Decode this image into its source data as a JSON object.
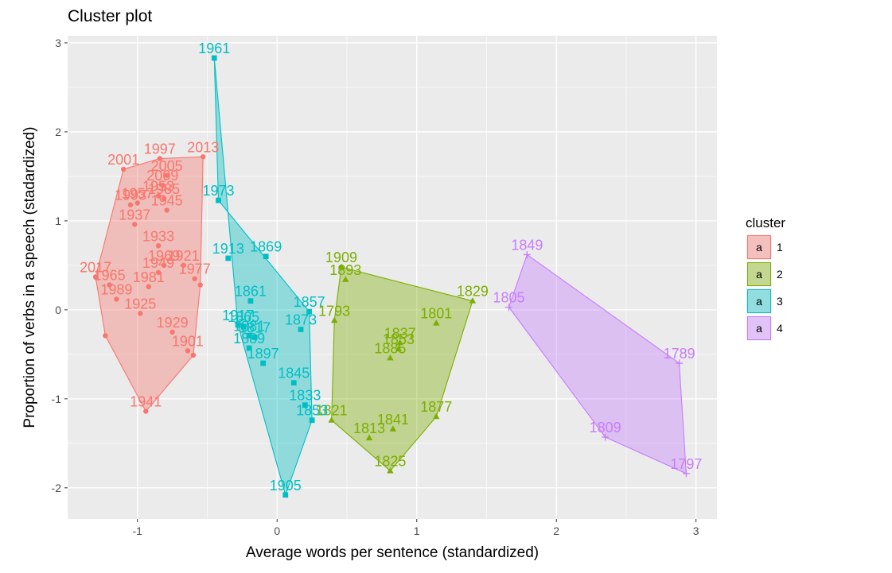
{
  "chart_data": {
    "type": "scatter",
    "title": "Cluster plot",
    "xlabel": "Average words per sentence (standardized)",
    "ylabel": "Proportion of verbs in a speech (stadardized)",
    "xlim": [
      -1.5,
      3.15
    ],
    "ylim": [
      -2.35,
      3.08
    ],
    "x_ticks": [
      -1,
      0,
      1,
      2,
      3
    ],
    "x_tick_labels": [
      "-1",
      "0",
      "1",
      "2",
      "3"
    ],
    "y_ticks": [
      -2,
      -1,
      0,
      1,
      2,
      3
    ],
    "y_tick_labels": [
      "-2",
      "-1",
      "0",
      "1",
      "2",
      "3"
    ],
    "grid": true,
    "legend": {
      "title": "cluster",
      "position": "right",
      "key_glyph": "a"
    },
    "series": [
      {
        "name": "1",
        "color": "#f8766d",
        "shape": "circle",
        "points": [
          {
            "label": "2001",
            "x": -1.1,
            "y": 1.58
          },
          {
            "label": "1997",
            "x": -0.84,
            "y": 1.7
          },
          {
            "label": "2013",
            "x": -0.53,
            "y": 1.72
          },
          {
            "label": "2005",
            "x": -0.79,
            "y": 1.51
          },
          {
            "label": "2009",
            "x": -0.82,
            "y": 1.4
          },
          {
            "label": "1957",
            "x": -1.0,
            "y": 1.2
          },
          {
            "label": "1953",
            "x": -0.85,
            "y": 1.28
          },
          {
            "label": "1985",
            "x": -0.81,
            "y": 1.25
          },
          {
            "label": "1993",
            "x": -1.05,
            "y": 1.18
          },
          {
            "label": "1945",
            "x": -0.79,
            "y": 1.12
          },
          {
            "label": "1937",
            "x": -1.02,
            "y": 0.96
          },
          {
            "label": "1933",
            "x": -0.85,
            "y": 0.72
          },
          {
            "label": "1969",
            "x": -0.81,
            "y": 0.5
          },
          {
            "label": "1921",
            "x": -0.67,
            "y": 0.5
          },
          {
            "label": "1949",
            "x": -0.85,
            "y": 0.42
          },
          {
            "label": "1977",
            "x": -0.59,
            "y": 0.35
          },
          {
            "label": "2017",
            "x": -1.3,
            "y": 0.37
          },
          {
            "label": "1965",
            "x": -1.2,
            "y": 0.28
          },
          {
            "label": "1981",
            "x": -0.92,
            "y": 0.26
          },
          {
            "label": "1989",
            "x": -1.15,
            "y": 0.12
          },
          {
            "label": "1925",
            "x": -0.98,
            "y": -0.04
          },
          {
            "label": "1929",
            "x": -0.75,
            "y": -0.25
          },
          {
            "label": "1901",
            "x": -0.64,
            "y": -0.46
          },
          {
            "label": "1941",
            "x": -0.94,
            "y": -1.14
          },
          {
            "label": "",
            "x": -1.23,
            "y": -0.29
          },
          {
            "label": "",
            "x": -0.6,
            "y": -0.51
          },
          {
            "label": "",
            "x": -0.55,
            "y": 0.28
          }
        ]
      },
      {
        "name": "2",
        "color": "#7cae00",
        "shape": "triangle",
        "points": [
          {
            "label": "1909",
            "x": 0.46,
            "y": 0.48
          },
          {
            "label": "1893",
            "x": 0.49,
            "y": 0.34
          },
          {
            "label": "1829",
            "x": 1.4,
            "y": 0.1
          },
          {
            "label": "1793",
            "x": 0.41,
            "y": -0.12
          },
          {
            "label": "1801",
            "x": 1.14,
            "y": -0.15
          },
          {
            "label": "1837",
            "x": 0.88,
            "y": -0.37
          },
          {
            "label": "1853",
            "x": 0.87,
            "y": -0.44
          },
          {
            "label": "1885",
            "x": 0.81,
            "y": -0.54
          },
          {
            "label": "1877",
            "x": 1.14,
            "y": -1.2
          },
          {
            "label": "1821",
            "x": 0.39,
            "y": -1.24
          },
          {
            "label": "1841",
            "x": 0.83,
            "y": -1.34
          },
          {
            "label": "1813",
            "x": 0.66,
            "y": -1.44
          },
          {
            "label": "1825",
            "x": 0.81,
            "y": -1.81
          }
        ]
      },
      {
        "name": "3",
        "color": "#00bfc4",
        "shape": "square",
        "points": [
          {
            "label": "1961",
            "x": -0.45,
            "y": 2.83
          },
          {
            "label": "1973",
            "x": -0.42,
            "y": 1.23
          },
          {
            "label": "1913",
            "x": -0.35,
            "y": 0.58
          },
          {
            "label": "1869",
            "x": -0.08,
            "y": 0.6
          },
          {
            "label": "1861",
            "x": -0.19,
            "y": 0.1
          },
          {
            "label": "1857",
            "x": 0.23,
            "y": -0.02
          },
          {
            "label": "1873",
            "x": 0.17,
            "y": -0.22
          },
          {
            "label": "1917",
            "x": -0.28,
            "y": -0.17
          },
          {
            "label": "1865",
            "x": -0.24,
            "y": -0.19
          },
          {
            "label": "1881",
            "x": -0.2,
            "y": -0.29
          },
          {
            "label": "1817",
            "x": -0.16,
            "y": -0.31
          },
          {
            "label": "1889",
            "x": -0.2,
            "y": -0.43
          },
          {
            "label": "1897",
            "x": -0.1,
            "y": -0.6
          },
          {
            "label": "1845",
            "x": 0.12,
            "y": -0.82
          },
          {
            "label": "1833",
            "x": 0.2,
            "y": -1.07
          },
          {
            "label": "1853",
            "x": 0.25,
            "y": -1.24
          },
          {
            "label": "1905",
            "x": 0.06,
            "y": -2.08
          }
        ]
      },
      {
        "name": "4",
        "color": "#c77cff",
        "shape": "plus",
        "points": [
          {
            "label": "1849",
            "x": 1.79,
            "y": 0.62
          },
          {
            "label": "1805",
            "x": 1.66,
            "y": 0.03
          },
          {
            "label": "1789",
            "x": 2.88,
            "y": -0.6
          },
          {
            "label": "1809",
            "x": 2.35,
            "y": -1.43
          },
          {
            "label": "1797",
            "x": 2.93,
            "y": -1.84
          }
        ]
      }
    ],
    "hulls": [
      {
        "series": "1",
        "fill": "#f8766d",
        "vertices": [
          [
            -1.3,
            0.37
          ],
          [
            -1.23,
            -0.29
          ],
          [
            -0.94,
            -1.14
          ],
          [
            -0.6,
            -0.51
          ],
          [
            -0.55,
            0.28
          ],
          [
            -0.53,
            1.72
          ],
          [
            -0.84,
            1.7
          ],
          [
            -1.1,
            1.58
          ]
        ]
      },
      {
        "series": "2",
        "fill": "#7cae00",
        "vertices": [
          [
            0.46,
            0.48
          ],
          [
            0.41,
            -0.12
          ],
          [
            0.39,
            -1.24
          ],
          [
            0.81,
            -1.81
          ],
          [
            1.14,
            -1.2
          ],
          [
            1.4,
            0.1
          ]
        ]
      },
      {
        "series": "3",
        "fill": "#00bfc4",
        "vertices": [
          [
            -0.45,
            2.83
          ],
          [
            -0.28,
            -0.17
          ],
          [
            0.06,
            -2.08
          ],
          [
            0.25,
            -1.24
          ],
          [
            0.23,
            -0.02
          ],
          [
            -0.42,
            1.23
          ]
        ]
      },
      {
        "series": "4",
        "fill": "#c77cff",
        "vertices": [
          [
            1.79,
            0.62
          ],
          [
            1.66,
            0.03
          ],
          [
            2.35,
            -1.43
          ],
          [
            2.93,
            -1.84
          ],
          [
            2.88,
            -0.6
          ]
        ]
      }
    ]
  }
}
